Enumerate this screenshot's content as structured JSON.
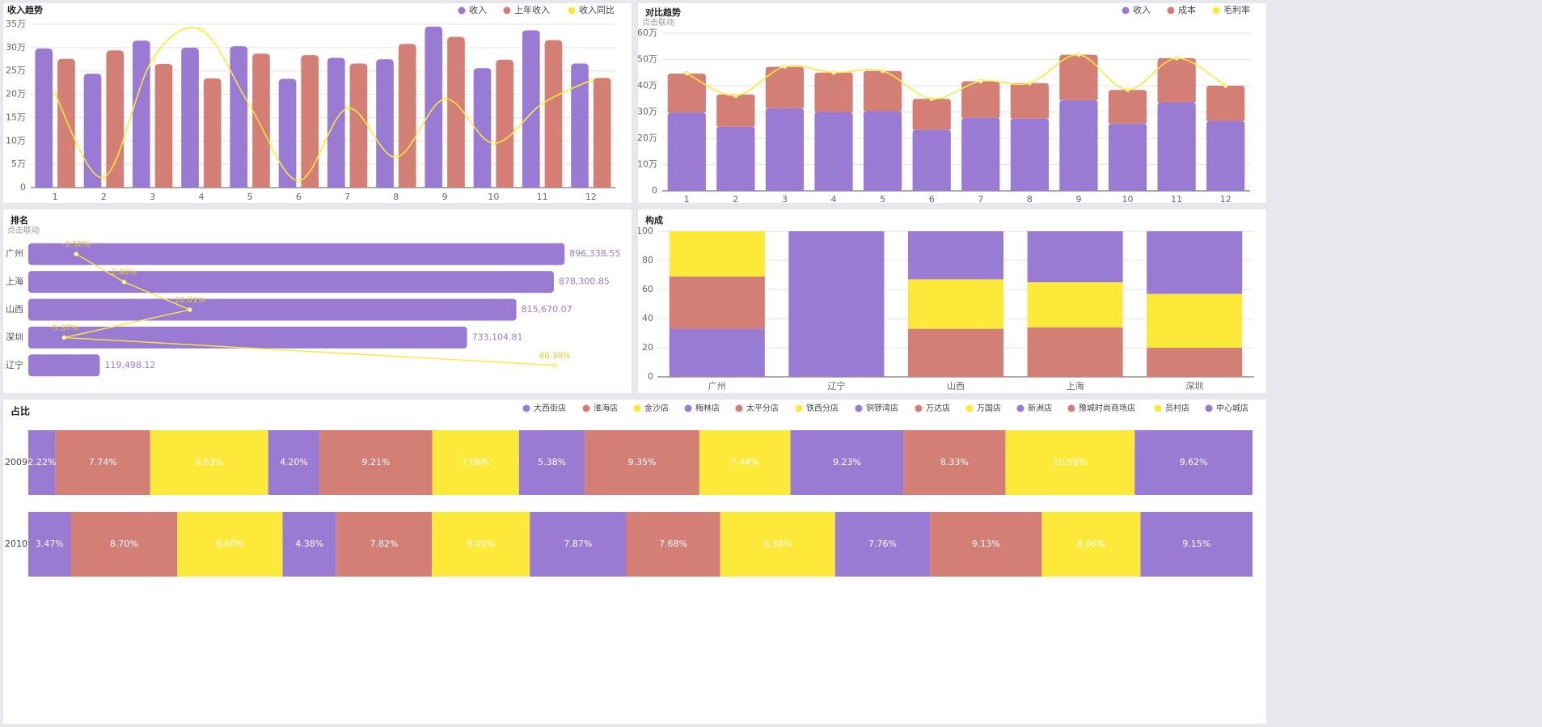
{
  "colors": {
    "purple": "#9a7bd4",
    "red": "#d47f76",
    "yellow": "#fde93a",
    "axis": "#666666",
    "grid": "#e3e3e3",
    "title": "#222222",
    "sub": "#9a9a9a",
    "legend": "#444444"
  },
  "chart_data": [
    {
      "id": "income-trend",
      "type": "bar",
      "title": "收入趋势",
      "categories": [
        "1",
        "2",
        "3",
        "4",
        "5",
        "6",
        "7",
        "8",
        "9",
        "10",
        "11",
        "12"
      ],
      "yticks": [
        "0",
        "5万",
        "10万",
        "15万",
        "20万",
        "25万",
        "30万",
        "35万"
      ],
      "ylim": [
        0,
        350000
      ],
      "legend": [
        "收入",
        "上年收入",
        "收入同比"
      ],
      "series": [
        {
          "name": "收入",
          "type": "bar",
          "values": [
            298000,
            244000,
            315000,
            300000,
            303000,
            233000,
            278000,
            275000,
            345000,
            256000,
            337000,
            266000
          ]
        },
        {
          "name": "上年收入",
          "type": "bar",
          "values": [
            276000,
            294000,
            265000,
            234000,
            287000,
            284000,
            266000,
            308000,
            323000,
            274000,
            316000,
            235000
          ]
        },
        {
          "name": "收入同比",
          "type": "line",
          "values": [
            200000,
            22000,
            275000,
            338000,
            175000,
            15000,
            170000,
            65000,
            190000,
            95000,
            180000,
            230000
          ]
        }
      ]
    },
    {
      "id": "compare-trend",
      "type": "bar",
      "title": "对比趋势",
      "subtitle": "点击联动",
      "categories": [
        "1",
        "2",
        "3",
        "4",
        "5",
        "6",
        "7",
        "8",
        "9",
        "10",
        "11",
        "12"
      ],
      "yticks": [
        "0",
        "10万",
        "20万",
        "30万",
        "40万",
        "50万",
        "60万"
      ],
      "ylim": [
        0,
        600000
      ],
      "legend": [
        "收入",
        "成本",
        "毛利率"
      ],
      "series": [
        {
          "name": "收入",
          "type": "bar",
          "stack": "a",
          "values": [
            298000,
            244000,
            315000,
            300000,
            303000,
            233000,
            278000,
            275000,
            345000,
            256000,
            337000,
            266000
          ]
        },
        {
          "name": "成本",
          "type": "bar",
          "stack": "a",
          "values": [
            148000,
            123000,
            157000,
            150000,
            153000,
            117000,
            139000,
            135000,
            173000,
            128000,
            168000,
            134000
          ]
        },
        {
          "name": "毛利率",
          "type": "line",
          "values": [
            447000,
            362000,
            473000,
            450000,
            456000,
            350000,
            417000,
            410000,
            518000,
            384000,
            505000,
            400000
          ]
        }
      ]
    },
    {
      "id": "ranking",
      "type": "bar",
      "orientation": "horizontal",
      "title": "排名",
      "subtitle": "点击联动",
      "categories": [
        "广州",
        "上海",
        "山西",
        "深圳",
        "辽宁"
      ],
      "values": [
        896338.55,
        878300.85,
        815670.07,
        733104.81,
        119498.12
      ],
      "value_labels": [
        "896,338.55",
        "878,300.85",
        "815,670.07",
        "733,104.81",
        "119,498.12"
      ],
      "xlim": [
        0,
        1000000
      ],
      "line_values": [
        -3.5,
        2.8,
        12.01,
        -5.37,
        60.3
      ],
      "line_labels": [
        "-3.50%",
        "2.80%",
        "12.01%",
        "-5.37%",
        "60.30%"
      ],
      "line_positions": [
        0.08,
        0.16,
        0.27,
        0.06,
        0.88
      ]
    },
    {
      "id": "composition",
      "type": "bar",
      "stacked": true,
      "title": "构成",
      "categories": [
        "广州",
        "辽宁",
        "山西",
        "上海",
        "深圳"
      ],
      "yticks": [
        "0",
        "20",
        "40",
        "60",
        "80",
        "100"
      ],
      "ylim": [
        0,
        100
      ],
      "series": [
        {
          "name": "purple",
          "color": "purple",
          "values": [
            33,
            100,
            0,
            0,
            0
          ]
        },
        {
          "name": "red",
          "color": "red",
          "values": [
            36,
            0,
            33,
            34,
            20
          ]
        },
        {
          "name": "yellow",
          "color": "yellow",
          "values": [
            31,
            0,
            34,
            31,
            37
          ]
        },
        {
          "name": "purple-top",
          "color": "purple",
          "values": [
            0,
            0,
            33,
            35,
            43
          ]
        }
      ]
    },
    {
      "id": "share",
      "type": "bar",
      "stacked": true,
      "orientation": "horizontal",
      "title": "占比",
      "legend": [
        "大西街店",
        "淮海店",
        "金沙店",
        "梅林店",
        "太平分店",
        "铁西分店",
        "铜锣湾店",
        "万达店",
        "万国店",
        "新洲店",
        "豫城时尚商场店",
        "员村店",
        "中心城店"
      ],
      "rows": [
        "2009",
        "2010"
      ],
      "values": [
        [
          2.22,
          7.74,
          9.63,
          4.2,
          9.21,
          7.08,
          5.38,
          9.35,
          7.44,
          9.23,
          8.33,
          10.56,
          9.62
        ],
        [
          3.47,
          8.7,
          8.6,
          4.38,
          7.82,
          8.0,
          7.87,
          7.68,
          9.38,
          7.76,
          9.13,
          8.06,
          9.15
        ]
      ],
      "labels": [
        [
          "2.22%",
          "7.74%",
          "9.63%",
          "4.20%",
          "9.21%",
          "7.08%",
          "5.38%",
          "9.35%",
          "7.44%",
          "9.23%",
          "8.33%",
          "10.56%",
          "9.62%"
        ],
        [
          "3.47%",
          "8.70%",
          "8.60%",
          "4.38%",
          "7.82%",
          "8.00%",
          "7.87%",
          "7.68%",
          "9.38%",
          "7.76%",
          "9.13%",
          "8.06%",
          "9.15%"
        ]
      ]
    }
  ]
}
